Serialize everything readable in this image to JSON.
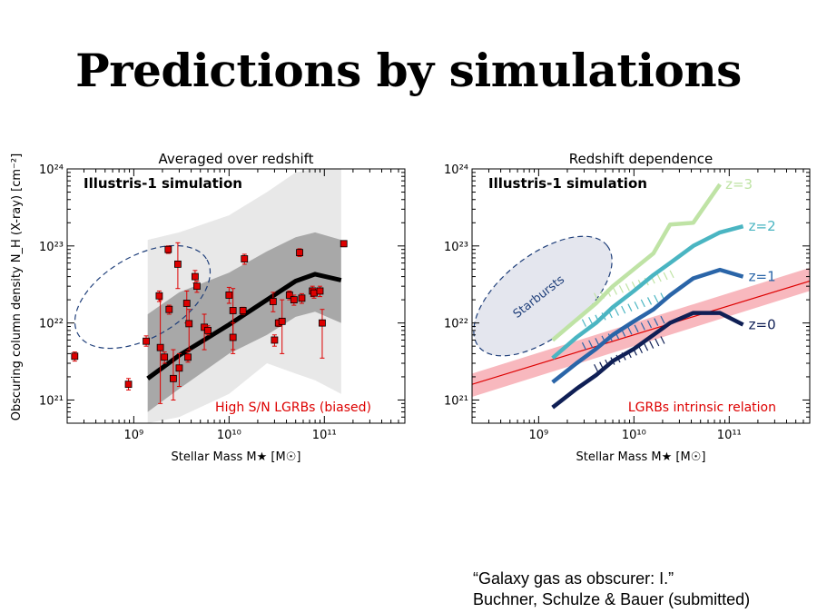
{
  "slide": {
    "title": "Predictions by simulations",
    "citation_line1": "“Galaxy gas as obscurer: I.”",
    "citation_line2": "Buchner, Schulze & Bauer (submitted)"
  },
  "chart_data": [
    {
      "type": "scatter",
      "title": "Averaged over redshift",
      "xlabel": "Stellar Mass M★ [M☉]",
      "ylabel": "Obscuring column density N_H (X-ray) [cm⁻²]",
      "xscale": "log",
      "yscale": "log",
      "xlim": [
        200000000.0,
        700000000000.0
      ],
      "ylim": [
        5e+20,
        1e+24
      ],
      "x_ticks": [
        "10⁹",
        "10¹⁰",
        "10¹¹"
      ],
      "y_ticks": [
        "10²¹",
        "10²²",
        "10²³",
        "10²⁴"
      ],
      "inset_label": "Illustris-1 simulation",
      "annotation": "High S/N LGRBs (biased)",
      "grid": false,
      "colors": {
        "points": "#dd0000",
        "median": "#000000",
        "band_outer": "#e8e8e8",
        "band_inner": "#a8a8a8",
        "ellipse": "#1f3f7a",
        "annotation": "#dd0000"
      },
      "points": [
        {
          "x": 240000000.0,
          "y": 3.7e+21,
          "lo": 3.2e+21,
          "hi": 4.2e+21
        },
        {
          "x": 880000000.0,
          "y": 1.6e+21,
          "lo": 1.35e+21,
          "hi": 1.9e+21
        },
        {
          "x": 1350000000.0,
          "y": 5.8e+21,
          "lo": 5e+21,
          "hi": 6.8e+21
        },
        {
          "x": 1850000000.0,
          "y": 2.25e+22,
          "lo": 1.9e+22,
          "hi": 2.6e+22
        },
        {
          "x": 1900000000.0,
          "y": 4.8e+21,
          "lo": 9e+20,
          "hi": 2e+22
        },
        {
          "x": 2100000000.0,
          "y": 3.6e+21,
          "lo": 3e+21,
          "hi": 4.2e+21
        },
        {
          "x": 2300000000.0,
          "y": 9e+22,
          "lo": 8e+22,
          "hi": 1e+23
        },
        {
          "x": 2350000000.0,
          "y": 1.5e+22,
          "lo": 1.3e+22,
          "hi": 1.7e+22
        },
        {
          "x": 2600000000.0,
          "y": 1.9e+21,
          "lo": 1e+21,
          "hi": 4.5e+21
        },
        {
          "x": 2900000000.0,
          "y": 5.8e+22,
          "lo": 2.8e+22,
          "hi": 1.1e+23
        },
        {
          "x": 3000000000.0,
          "y": 2.6e+21,
          "lo": 1.5e+21,
          "hi": 4e+21
        },
        {
          "x": 3600000000.0,
          "y": 1.8e+22,
          "lo": 1e+22,
          "hi": 2.6e+22
        },
        {
          "x": 3700000000.0,
          "y": 3.6e+21,
          "lo": 3.1e+21,
          "hi": 4.2e+21
        },
        {
          "x": 3800000000.0,
          "y": 9.8e+21,
          "lo": 4.5e+21,
          "hi": 1.5e+22
        },
        {
          "x": 4400000000.0,
          "y": 4e+22,
          "lo": 3.3e+22,
          "hi": 4.8e+22
        },
        {
          "x": 4600000000.0,
          "y": 3e+22,
          "lo": 2.5e+22,
          "hi": 3.5e+22
        },
        {
          "x": 5500000000.0,
          "y": 8.8e+21,
          "lo": 4.5e+21,
          "hi": 1.3e+22
        },
        {
          "x": 6000000000.0,
          "y": 8e+21,
          "lo": 7e+21,
          "hi": 9.2e+21
        },
        {
          "x": 10000000000.0,
          "y": 2.3e+22,
          "lo": 1.8e+22,
          "hi": 2.9e+22
        },
        {
          "x": 11000000000.0,
          "y": 1.45e+22,
          "lo": 4.5e+21,
          "hi": 2.8e+22
        },
        {
          "x": 11000000000.0,
          "y": 6.5e+21,
          "lo": 4e+21,
          "hi": 1e+22
        },
        {
          "x": 14000000000.0,
          "y": 1.45e+22,
          "lo": 1.3e+22,
          "hi": 1.6e+22
        },
        {
          "x": 14500000000.0,
          "y": 6.8e+22,
          "lo": 5.8e+22,
          "hi": 7.8e+22
        },
        {
          "x": 29000000000.0,
          "y": 1.9e+22,
          "lo": 1.4e+22,
          "hi": 2.5e+22
        },
        {
          "x": 30000000000.0,
          "y": 6e+21,
          "lo": 5e+21,
          "hi": 7e+21
        },
        {
          "x": 33000000000.0,
          "y": 1e+22,
          "lo": 9e+21,
          "hi": 1.1e+22
        },
        {
          "x": 36000000000.0,
          "y": 1.05e+22,
          "lo": 4e+21,
          "hi": 2e+22
        },
        {
          "x": 43000000000.0,
          "y": 2.3e+22,
          "lo": 2e+22,
          "hi": 2.6e+22
        },
        {
          "x": 48000000000.0,
          "y": 2e+22,
          "lo": 1.7e+22,
          "hi": 2.3e+22
        },
        {
          "x": 55000000000.0,
          "y": 8.2e+22,
          "lo": 7.3e+22,
          "hi": 9.2e+22
        },
        {
          "x": 58000000000.0,
          "y": 2.1e+22,
          "lo": 1.8e+22,
          "hi": 2.4e+22
        },
        {
          "x": 75000000000.0,
          "y": 2.6e+22,
          "lo": 2.2e+22,
          "hi": 3e+22
        },
        {
          "x": 78000000000.0,
          "y": 2.45e+22,
          "lo": 2.1e+22,
          "hi": 2.8e+22
        },
        {
          "x": 90000000000.0,
          "y": 2.6e+22,
          "lo": 2.2e+22,
          "hi": 3e+22
        },
        {
          "x": 95000000000.0,
          "y": 1e+22,
          "lo": 3.5e+21,
          "hi": 1.5e+22
        },
        {
          "x": 160000000000.0,
          "y": 1.07e+23,
          "lo": 9.8e+22,
          "hi": 1.15e+23
        }
      ],
      "median_line": {
        "x": [
          1400000000.0,
          3000000000.0,
          10000000000.0,
          25000000000.0,
          50000000000.0,
          80000000000.0,
          150000000000.0
        ],
        "y": [
          1.9e+21,
          3.8e+21,
          9.5e+21,
          2e+22,
          3.5e+22,
          4.3e+22,
          3.6e+22
        ]
      },
      "band_outer": {
        "x": [
          1400000000.0,
          3000000000.0,
          10000000000.0,
          25000000000.0,
          50000000000.0,
          80000000000.0,
          150000000000.0
        ],
        "lo": [
          5e+20,
          6e+20,
          1.2e+21,
          3e+21,
          2.2e+21,
          1.8e+21,
          1.2e+21
        ],
        "hi": [
          1.2e+23,
          1.5e+23,
          2.5e+23,
          5e+23,
          9e+23,
          1e+24,
          1e+24
        ]
      },
      "band_inner": {
        "x": [
          1400000000.0,
          3000000000.0,
          10000000000.0,
          25000000000.0,
          50000000000.0,
          80000000000.0,
          150000000000.0
        ],
        "lo": [
          7e+20,
          1.4e+21,
          4e+21,
          7e+21,
          1.2e+22,
          1.4e+22,
          1e+22
        ],
        "hi": [
          1.3e+22,
          2.5e+22,
          4.5e+22,
          8.5e+22,
          1.3e+23,
          1.5e+23,
          1.2e+23
        ]
      }
    },
    {
      "type": "line",
      "title": "Redshift dependence",
      "xlabel": "Stellar Mass M★ [M☉]",
      "xscale": "log",
      "yscale": "log",
      "xlim": [
        200000000.0,
        700000000000.0
      ],
      "ylim": [
        5e+20,
        1e+24
      ],
      "x_ticks": [
        "10⁹",
        "10¹⁰",
        "10¹¹"
      ],
      "y_ticks": [
        "10²¹",
        "10²²",
        "10²³",
        "10²⁴"
      ],
      "inset_label": "Illustris-1 simulation",
      "annotation": "LGRBs intrinsic relation",
      "ellipse_label": "Starbursts",
      "grid": false,
      "colors": {
        "relation": "#dd0000",
        "relation_band": "#f6a0a8",
        "ellipse_fill": "#e4e6ee",
        "ellipse": "#1f3f7a",
        "annotation": "#dd0000"
      },
      "relation": {
        "x": [
          200000000.0,
          700000000000.0
        ],
        "y": [
          1.6e+21,
          3.5e+22
        ],
        "lo": [
          1.1e+21,
          2.6e+22
        ],
        "hi": [
          2.2e+21,
          5.2e+22
        ]
      },
      "series": [
        {
          "name": "z=3",
          "color": "#bfe3a5",
          "x": [
            1400000000.0,
            2500000000.0,
            4000000000.0,
            6000000000.0,
            10000000000.0,
            16000000000.0,
            24000000000.0,
            42000000000.0,
            80000000000.0
          ],
          "y": [
            6e+21,
            1.1e+22,
            1.8e+22,
            3e+22,
            5e+22,
            8e+22,
            1.9e+23,
            2e+23,
            6.3e+23
          ],
          "hatch": {
            "x": [
              4000000000.0,
              25000000000.0
            ],
            "y": [
              2.2e+22,
              4.3e+22
            ]
          }
        },
        {
          "name": "z=2",
          "color": "#4ab5c2",
          "x": [
            1400000000.0,
            2500000000.0,
            4000000000.0,
            6000000000.0,
            10000000000.0,
            16000000000.0,
            24000000000.0,
            42000000000.0,
            80000000000.0,
            140000000000.0
          ],
          "y": [
            3.5e+21,
            6.5e+21,
            1e+22,
            1.6e+22,
            2.6e+22,
            4.2e+22,
            6e+22,
            1e+23,
            1.5e+23,
            1.8e+23
          ],
          "hatch": {
            "x": [
              3000000000.0,
              20000000000.0
            ],
            "y": [
              1e+22,
              2.2e+22
            ]
          }
        },
        {
          "name": "z=1",
          "color": "#2a65a8",
          "x": [
            1400000000.0,
            2500000000.0,
            4000000000.0,
            6000000000.0,
            10000000000.0,
            16000000000.0,
            24000000000.0,
            42000000000.0,
            80000000000.0,
            140000000000.0
          ],
          "y": [
            1.7e+21,
            3e+21,
            4.6e+21,
            7e+21,
            1.05e+22,
            1.5e+22,
            2.3e+22,
            3.8e+22,
            4.9e+22,
            4e+22
          ],
          "hatch": {
            "x": [
              3000000000.0,
              20000000000.0
            ],
            "y": [
              5e+21,
              1.1e+22
            ]
          }
        },
        {
          "name": "z=0",
          "color": "#0f1f55",
          "x": [
            1400000000.0,
            2500000000.0,
            4000000000.0,
            6000000000.0,
            10000000000.0,
            16000000000.0,
            24000000000.0,
            42000000000.0,
            80000000000.0,
            140000000000.0
          ],
          "y": [
            8e+20,
            1.4e+21,
            2.1e+21,
            3.2e+21,
            4.6e+21,
            7e+21,
            1e+22,
            1.35e+22,
            1.35e+22,
            9.5e+21
          ],
          "hatch": {
            "x": [
              4000000000.0,
              20000000000.0
            ],
            "y": [
              2.6e+21,
              6e+21
            ]
          }
        }
      ]
    }
  ]
}
